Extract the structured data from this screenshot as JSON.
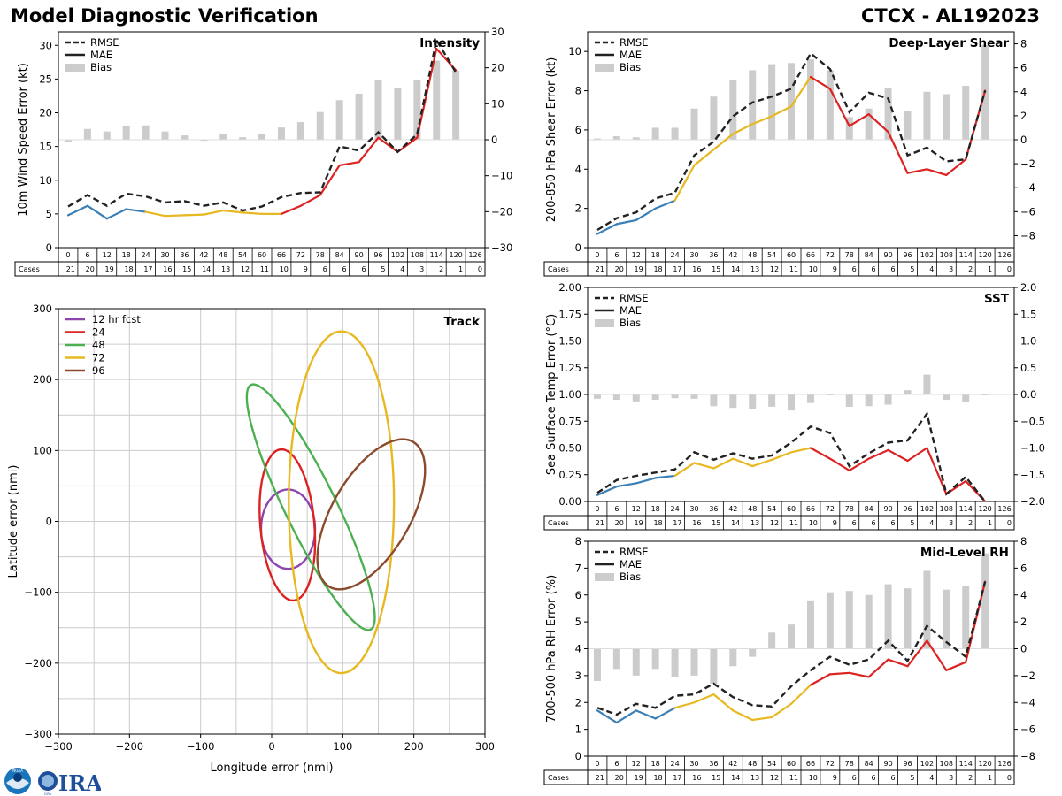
{
  "title_left": "Model Diagnostic Verification",
  "title_right": "CTCX - AL192023",
  "logo": {
    "noaa_text": "NOAA",
    "cira_text": "CIRA"
  },
  "legend_labels": {
    "rmse": "RMSE",
    "mae": "MAE",
    "bias": "Bias"
  },
  "cases_label": "Cases",
  "hours": [
    "0",
    "6",
    "12",
    "18",
    "24",
    "30",
    "36",
    "42",
    "48",
    "54",
    "60",
    "66",
    "72",
    "78",
    "84",
    "90",
    "96",
    "102",
    "108",
    "114",
    "120",
    "126"
  ],
  "cases": [
    "21",
    "20",
    "19",
    "18",
    "17",
    "16",
    "15",
    "14",
    "13",
    "12",
    "11",
    "10",
    "9",
    "6",
    "6",
    "6",
    "5",
    "4",
    "3",
    "2",
    "1",
    "0"
  ],
  "colors": {
    "rmse": "#222222",
    "mae_early": "#3a7fb5",
    "mae_mid": "#e8b820",
    "mae_late": "#dd2222",
    "bias": "#cccccc",
    "grid": "#cccccc"
  },
  "chart_data": [
    {
      "type": "line",
      "name": "intensity",
      "panel_title": "Intensity",
      "ylabel": "10m Wind Speed Error (kt)",
      "ylim": [
        0,
        32
      ],
      "yticks": [
        "0",
        "5",
        "10",
        "15",
        "20",
        "25",
        "30"
      ],
      "y2lim": [
        -30,
        30
      ],
      "y2ticks": [
        "30",
        "20",
        "10",
        "0",
        "−10",
        "−20",
        "−30"
      ],
      "x": [
        0,
        6,
        12,
        18,
        24,
        30,
        36,
        42,
        48,
        54,
        60,
        66,
        72,
        78,
        84,
        90,
        96,
        102,
        108,
        114,
        120
      ],
      "rmse": [
        6.1,
        7.8,
        6.2,
        8.0,
        7.6,
        6.7,
        6.9,
        6.2,
        6.7,
        5.5,
        6.1,
        7.5,
        8.1,
        8.2,
        15.0,
        14.4,
        17.1,
        14.2,
        16.8,
        30.8,
        26.0
      ],
      "mae": [
        4.8,
        6.2,
        4.3,
        5.7,
        5.3,
        4.7,
        4.8,
        4.9,
        5.5,
        5.2,
        5.0,
        5.0,
        6.2,
        7.8,
        12.2,
        12.7,
        16.3,
        14.2,
        16.3,
        29.5,
        26.3
      ],
      "bias": [
        -0.5,
        3.0,
        2.3,
        3.7,
        4.0,
        2.3,
        1.2,
        -0.3,
        1.5,
        0.7,
        1.5,
        3.4,
        4.9,
        7.7,
        11.0,
        12.8,
        16.5,
        14.3,
        16.7,
        22.0,
        19.2
      ]
    },
    {
      "type": "line",
      "name": "shear",
      "panel_title": "Deep-Layer Shear",
      "ylabel": "200-850 hPa Shear Error (kt)",
      "ylim": [
        0,
        11
      ],
      "yticks": [
        "0",
        "2",
        "4",
        "6",
        "8",
        "10"
      ],
      "y2lim": [
        -9,
        9
      ],
      "y2ticks": [
        "8",
        "6",
        "4",
        "2",
        "0",
        "−2",
        "−4",
        "−6",
        "−8"
      ],
      "x": [
        0,
        6,
        12,
        18,
        24,
        30,
        36,
        42,
        48,
        54,
        60,
        66,
        72,
        78,
        84,
        90,
        96,
        102,
        108,
        114,
        120
      ],
      "rmse": [
        0.9,
        1.5,
        1.8,
        2.5,
        2.8,
        4.7,
        5.4,
        6.7,
        7.4,
        7.7,
        8.1,
        9.9,
        9.1,
        6.9,
        7.9,
        7.6,
        4.7,
        5.1,
        4.4,
        4.5,
        8.0
      ],
      "mae": [
        0.7,
        1.2,
        1.4,
        2.0,
        2.4,
        4.2,
        5.0,
        5.8,
        6.3,
        6.7,
        7.2,
        8.7,
        8.1,
        6.2,
        6.8,
        5.9,
        3.8,
        4.0,
        3.7,
        4.5,
        8.0
      ],
      "bias": [
        0.1,
        0.3,
        0.2,
        1.0,
        1.0,
        2.6,
        3.6,
        5.0,
        5.8,
        6.3,
        6.4,
        6.7,
        5.8,
        1.9,
        2.6,
        4.3,
        2.4,
        4.0,
        3.8,
        4.5,
        7.9
      ]
    },
    {
      "type": "line",
      "name": "sst",
      "panel_title": "SST",
      "ylabel": "Sea Surface Temp Error (°C)",
      "ylim": [
        0,
        2
      ],
      "yticks": [
        "0.00",
        "0.25",
        "0.50",
        "0.75",
        "1.00",
        "1.25",
        "1.50",
        "1.75",
        "2.00"
      ],
      "y2lim": [
        -2,
        2
      ],
      "y2ticks": [
        "2.0",
        "1.5",
        "1.0",
        "0.5",
        "0.0",
        "−0.5",
        "−1.0",
        "−1.5",
        "−2.0"
      ],
      "x": [
        0,
        6,
        12,
        18,
        24,
        30,
        36,
        42,
        48,
        54,
        60,
        66,
        72,
        78,
        84,
        90,
        96,
        102,
        108,
        114,
        120
      ],
      "rmse": [
        0.08,
        0.2,
        0.24,
        0.27,
        0.3,
        0.46,
        0.39,
        0.45,
        0.4,
        0.43,
        0.55,
        0.7,
        0.64,
        0.33,
        0.45,
        0.55,
        0.57,
        0.82,
        0.07,
        0.23,
        0.0
      ],
      "mae": [
        0.06,
        0.14,
        0.17,
        0.22,
        0.24,
        0.36,
        0.31,
        0.4,
        0.33,
        0.39,
        0.46,
        0.5,
        0.4,
        0.29,
        0.4,
        0.48,
        0.38,
        0.5,
        0.07,
        0.19,
        0.0
      ],
      "bias": [
        -0.08,
        -0.1,
        -0.13,
        -0.1,
        -0.07,
        -0.08,
        -0.22,
        -0.25,
        -0.27,
        -0.23,
        -0.3,
        -0.16,
        -0.01,
        -0.23,
        -0.22,
        -0.19,
        0.08,
        0.37,
        -0.1,
        -0.14,
        -0.01
      ]
    },
    {
      "type": "line",
      "name": "rh",
      "panel_title": "Mid-Level RH",
      "ylabel": "700-500 hPa RH Error (%)",
      "ylim": [
        0,
        8
      ],
      "yticks": [
        "0",
        "1",
        "2",
        "3",
        "4",
        "5",
        "6",
        "7",
        "8"
      ],
      "y2lim": [
        -8,
        8
      ],
      "y2ticks": [
        "8",
        "6",
        "4",
        "2",
        "0",
        "−2",
        "−4",
        "−6",
        "−8"
      ],
      "x": [
        0,
        6,
        12,
        18,
        24,
        30,
        36,
        42,
        48,
        54,
        60,
        66,
        72,
        78,
        84,
        90,
        96,
        102,
        108,
        114,
        120
      ],
      "rmse": [
        1.8,
        1.55,
        1.95,
        1.8,
        2.25,
        2.3,
        2.7,
        2.2,
        1.9,
        1.85,
        2.6,
        3.2,
        3.7,
        3.4,
        3.6,
        4.3,
        3.55,
        4.85,
        4.25,
        3.7,
        6.5
      ],
      "mae": [
        1.7,
        1.25,
        1.7,
        1.4,
        1.8,
        2.0,
        2.3,
        1.7,
        1.35,
        1.45,
        1.95,
        2.65,
        3.05,
        3.1,
        2.95,
        3.6,
        3.35,
        4.3,
        3.2,
        3.5,
        6.5
      ],
      "bias": [
        -2.4,
        -1.5,
        -2.0,
        -1.5,
        -2.1,
        -2.0,
        -2.6,
        -1.3,
        -0.6,
        1.2,
        1.8,
        3.6,
        4.2,
        4.3,
        4.0,
        4.8,
        4.5,
        5.8,
        4.4,
        4.7,
        7.1
      ]
    },
    {
      "type": "scatter",
      "name": "track",
      "panel_title": "Track",
      "xlabel": "Longitude error (nmi)",
      "ylabel": "Latitude error (nmi)",
      "xlim": [
        -300,
        300
      ],
      "ylim": [
        -300,
        300
      ],
      "xticks": [
        "−300",
        "−200",
        "−100",
        "0",
        "100",
        "200",
        "300"
      ],
      "yticks": [
        "300",
        "200",
        "100",
        "0",
        "−100",
        "−200",
        "−300"
      ],
      "ellipses": [
        {
          "label": "12 hr fcst",
          "color": "#8e44ad",
          "cx": 23,
          "cy": -11,
          "rx": 38,
          "ry": 56,
          "angle": 0
        },
        {
          "label": "24",
          "color": "#dd2222",
          "cx": 22,
          "cy": -5,
          "rx": 38,
          "ry": 107,
          "angle": -5
        },
        {
          "label": "48",
          "color": "#4caf50",
          "cx": 55,
          "cy": 20,
          "rx": 36,
          "ry": 192,
          "angle": -26
        },
        {
          "label": "72",
          "color": "#e8b820",
          "cx": 98,
          "cy": 27,
          "rx": 74,
          "ry": 241,
          "angle": 0
        },
        {
          "label": "96",
          "color": "#8b4a2b",
          "cx": 140,
          "cy": 10,
          "rx": 55,
          "ry": 118,
          "angle": 30
        }
      ]
    }
  ]
}
